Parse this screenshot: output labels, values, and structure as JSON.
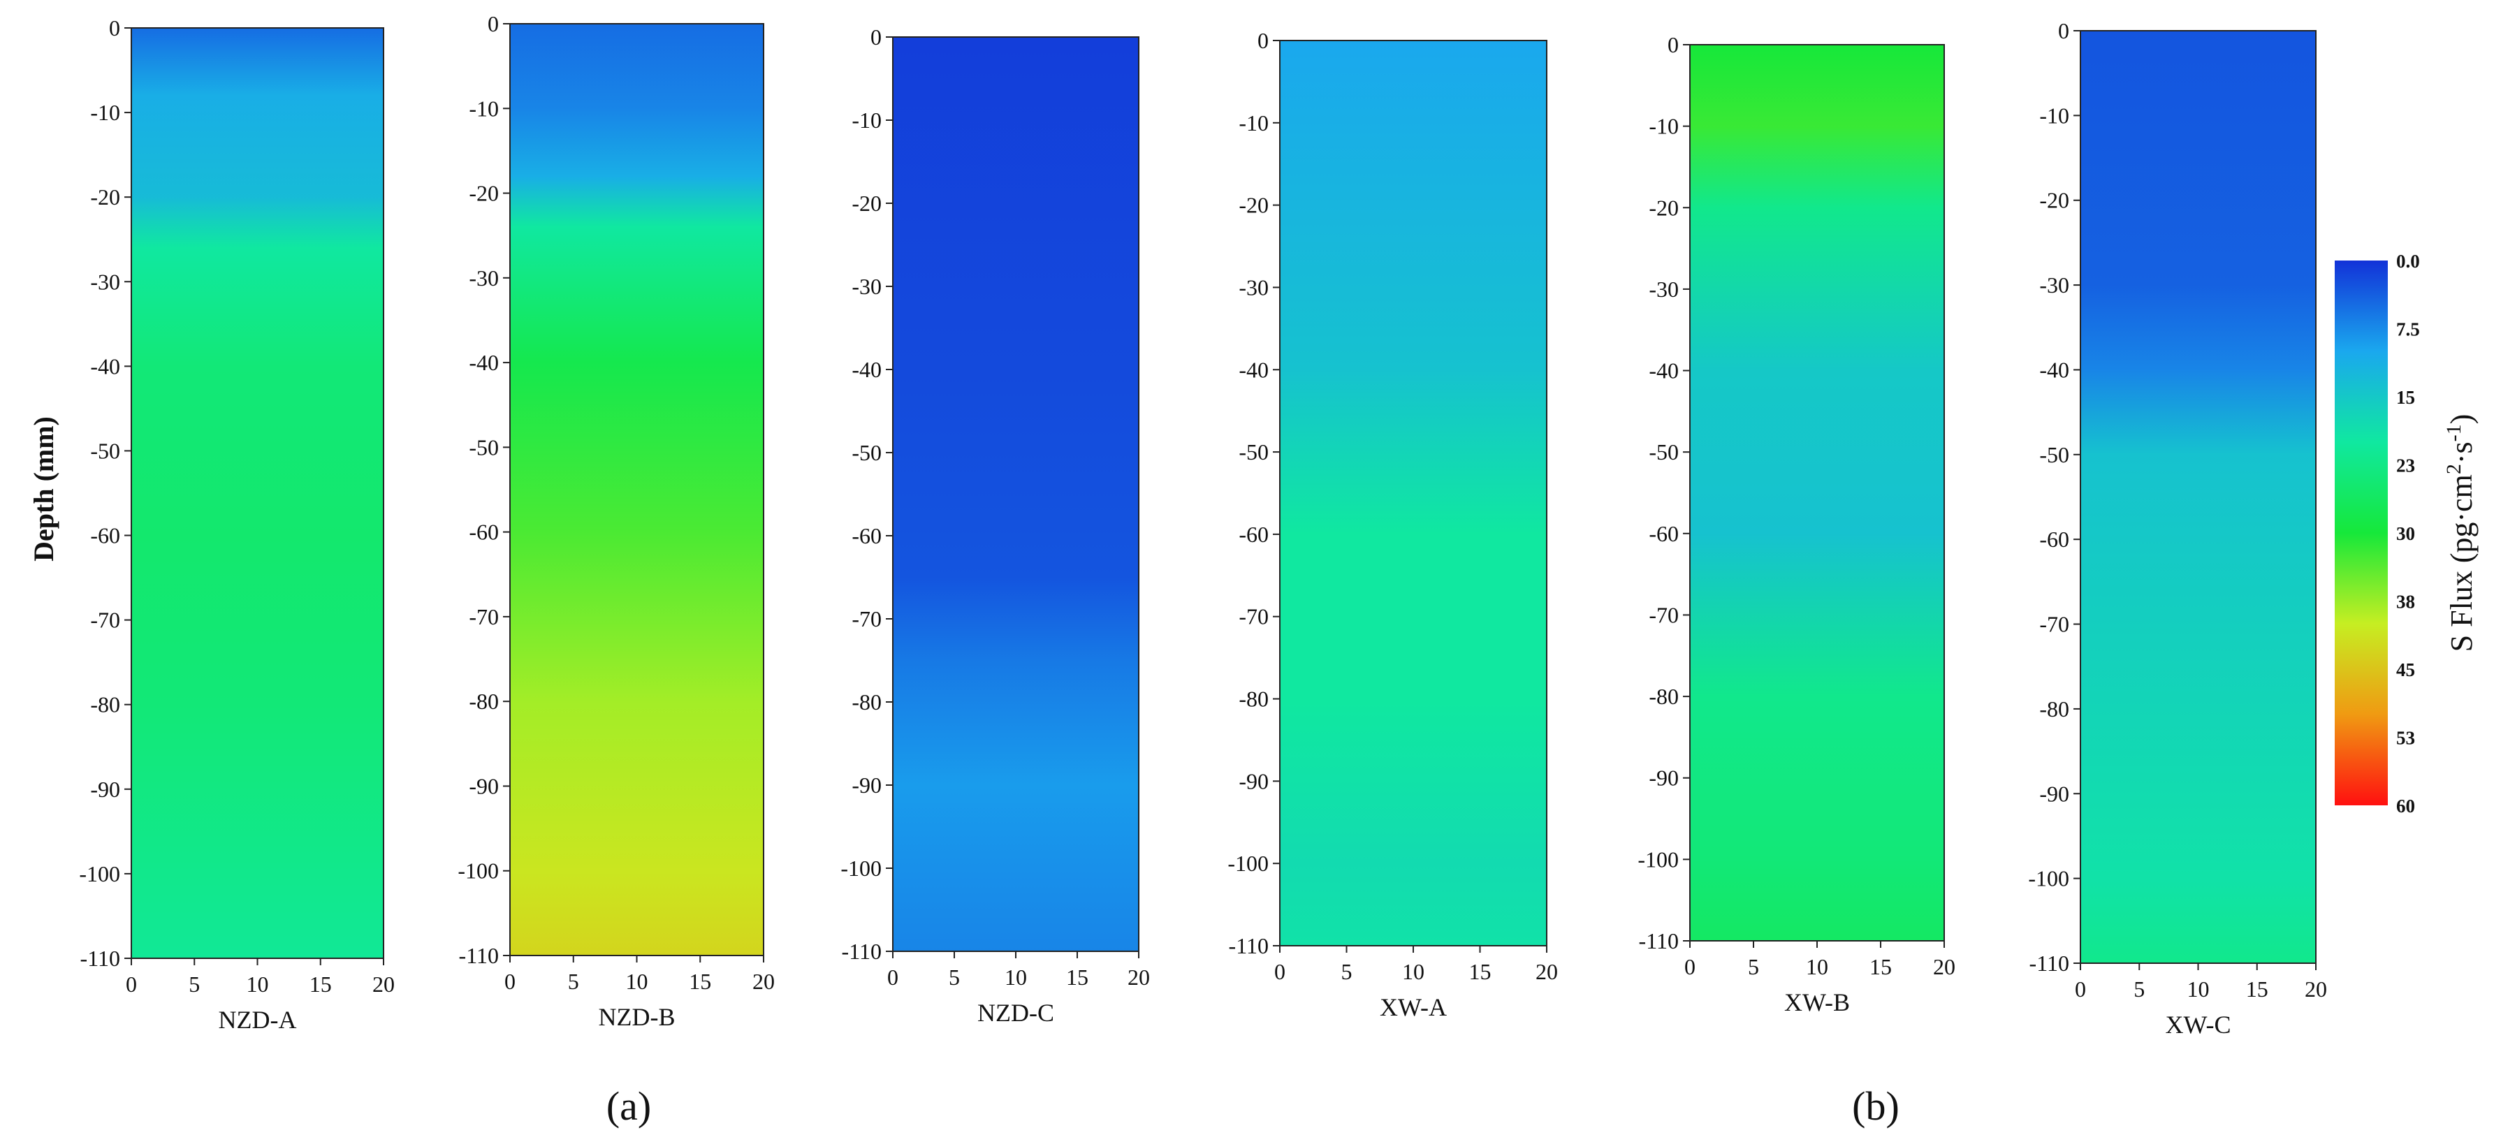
{
  "chart_data": {
    "type": "heatmap",
    "ylabel": "Depth (mm)",
    "x_range": [
      0,
      20
    ],
    "y_range": [
      -110,
      0
    ],
    "x_ticks": [
      "0",
      "5",
      "10",
      "15",
      "20"
    ],
    "y_ticks": [
      "0",
      "-10",
      "-20",
      "-30",
      "-40",
      "-50",
      "-60",
      "-70",
      "-80",
      "-90",
      "-100",
      "-110"
    ],
    "colorbar": {
      "label": "S Flux (pg·cm",
      "label_sup1": "2",
      "label_mid": "·s",
      "label_sup2": "-1",
      "label_end": ")",
      "ticks": [
        "0.0",
        "7.5",
        "15",
        "23",
        "30",
        "38",
        "45",
        "53",
        "60"
      ],
      "range": [
        0,
        60
      ],
      "colors": [
        "#1232d8",
        "#1aa8ee",
        "#10e8a0",
        "#16e83a",
        "#c6ee22",
        "#f09a12",
        "#ff1010"
      ]
    },
    "subfigure_labels": {
      "a": "(a)",
      "b": "(b)"
    },
    "panels": [
      {
        "name": "NZD-A",
        "group": "a",
        "profile": [
          [
            0,
            5
          ],
          [
            -8,
            11
          ],
          [
            -20,
            13
          ],
          [
            -26,
            20
          ],
          [
            -40,
            24
          ],
          [
            -60,
            25
          ],
          [
            -80,
            24
          ],
          [
            -100,
            22
          ],
          [
            -110,
            21
          ]
        ]
      },
      {
        "name": "NZD-B",
        "group": "a",
        "profile": [
          [
            0,
            5
          ],
          [
            -10,
            7
          ],
          [
            -18,
            11
          ],
          [
            -24,
            20
          ],
          [
            -40,
            28
          ],
          [
            -60,
            33
          ],
          [
            -80,
            38
          ],
          [
            -100,
            41
          ],
          [
            -110,
            43
          ]
        ]
      },
      {
        "name": "NZD-C",
        "group": "a",
        "profile": [
          [
            0,
            1
          ],
          [
            -40,
            2
          ],
          [
            -65,
            3
          ],
          [
            -75,
            6
          ],
          [
            -90,
            9
          ],
          [
            -100,
            8
          ],
          [
            -110,
            7
          ]
        ]
      },
      {
        "name": "XW-A",
        "group": "b",
        "profile": [
          [
            0,
            10
          ],
          [
            -20,
            12
          ],
          [
            -40,
            14
          ],
          [
            -60,
            20
          ],
          [
            -80,
            20
          ],
          [
            -100,
            18
          ],
          [
            -110,
            19
          ]
        ]
      },
      {
        "name": "XW-B",
        "group": "b",
        "profile": [
          [
            0,
            30
          ],
          [
            -10,
            32
          ],
          [
            -20,
            22
          ],
          [
            -40,
            15
          ],
          [
            -60,
            14
          ],
          [
            -80,
            22
          ],
          [
            -100,
            24
          ],
          [
            -110,
            26
          ]
        ]
      },
      {
        "name": "XW-C",
        "group": "b",
        "profile": [
          [
            0,
            3
          ],
          [
            -30,
            4
          ],
          [
            -40,
            7
          ],
          [
            -50,
            14
          ],
          [
            -80,
            17
          ],
          [
            -100,
            19
          ],
          [
            -110,
            22
          ]
        ]
      }
    ]
  }
}
